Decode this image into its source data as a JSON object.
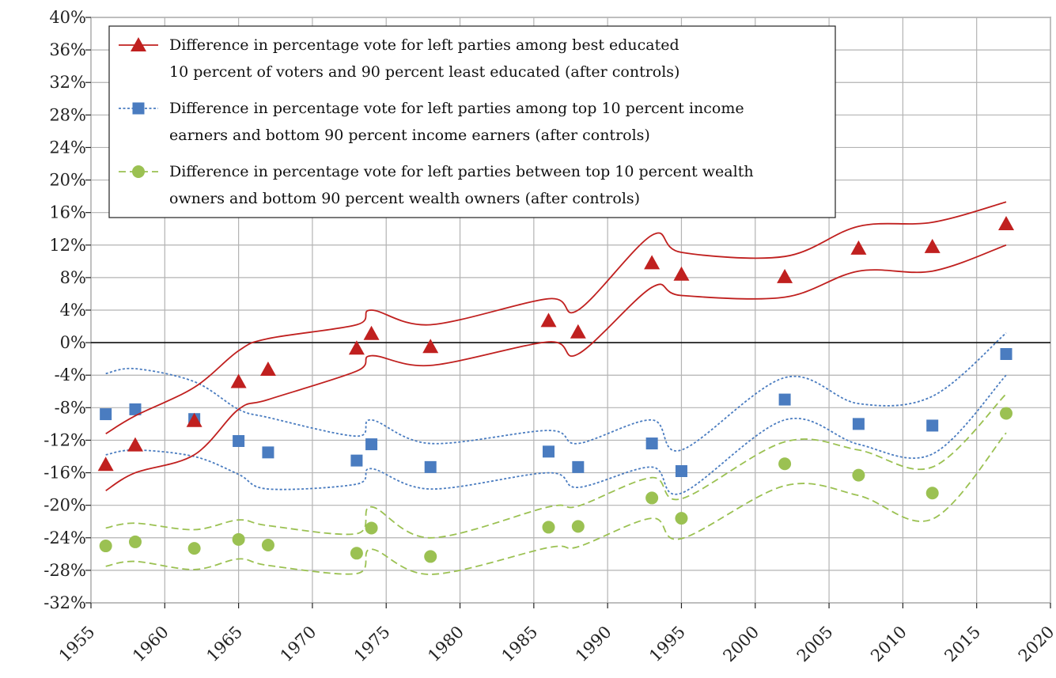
{
  "chart_data": {
    "type": "line",
    "title": "",
    "xlabel": "",
    "ylabel": "",
    "xlim": [
      1955,
      2020
    ],
    "ylim": [
      -32,
      40
    ],
    "x_ticks": [
      "1955",
      "1960",
      "1965",
      "1970",
      "1975",
      "1980",
      "1985",
      "1990",
      "1995",
      "2000",
      "2005",
      "2010",
      "2015",
      "2020"
    ],
    "y_ticks": [
      "40%",
      "36%",
      "32%",
      "28%",
      "24%",
      "20%",
      "16%",
      "12%",
      "8%",
      "4%",
      "0%",
      "-4%",
      "-8%",
      "-12%",
      "-16%",
      "-20%",
      "-24%",
      "-28%",
      "-32%"
    ],
    "grid": true,
    "legend_position": "top-left",
    "series": [
      {
        "name": "Difference in percentage vote for left parties among best educated 10 percent of voters and 90 percent least educated (after controls)",
        "legend_lines": [
          "Difference in percentage vote for left parties among best educated",
          "10 percent of voters and 90 percent least educated (after controls)"
        ],
        "color": "#c0201f",
        "marker": "triangle",
        "line_style": "solid",
        "x": [
          1956,
          1958,
          1962,
          1965,
          1967,
          1973,
          1974,
          1978,
          1986,
          1988,
          1993,
          1995,
          2002,
          2007,
          2012,
          2017
        ],
        "values": [
          -15.0,
          -12.6,
          -9.6,
          -4.8,
          -3.3,
          -0.7,
          1.1,
          -0.5,
          2.7,
          1.3,
          9.8,
          8.4,
          8.1,
          11.6,
          11.8,
          14.6
        ],
        "upper": [
          -11.2,
          -9.0,
          -5.5,
          -1.0,
          0.5,
          2.2,
          4.0,
          2.2,
          5.4,
          4.0,
          13.2,
          11.1,
          10.6,
          14.3,
          14.8,
          17.3
        ],
        "lower": [
          -18.2,
          -16.0,
          -13.8,
          -8.2,
          -7.0,
          -3.5,
          -1.6,
          -2.8,
          0.1,
          -1.4,
          6.8,
          5.8,
          5.6,
          8.8,
          8.8,
          12.0
        ]
      },
      {
        "name": "Difference in percentage vote for left parties among top 10 percent income earners and bottom 90 percent income earners (after controls)",
        "legend_lines": [
          "Difference in percentage vote for left parties among top 10 percent income",
          "earners and bottom 90 percent income earners (after controls)"
        ],
        "color": "#4a7cc0",
        "marker": "square",
        "line_style": "dotted",
        "x": [
          1956,
          1958,
          1962,
          1965,
          1967,
          1973,
          1974,
          1978,
          1986,
          1988,
          1993,
          1995,
          2002,
          2007,
          2012,
          2017
        ],
        "values": [
          -8.8,
          -8.2,
          -9.4,
          -12.1,
          -13.5,
          -14.5,
          -12.5,
          -15.3,
          -13.4,
          -15.3,
          -12.4,
          -15.8,
          -7.0,
          -10.0,
          -10.2,
          -1.4
        ],
        "upper": [
          -3.8,
          -3.2,
          -4.8,
          -8.2,
          -9.2,
          -11.5,
          -9.5,
          -12.4,
          -10.8,
          -12.4,
          -9.5,
          -13.2,
          -4.3,
          -7.5,
          -6.6,
          1.2
        ],
        "lower": [
          -13.8,
          -13.2,
          -14.0,
          -16.2,
          -18.0,
          -17.4,
          -15.5,
          -18.0,
          -16.0,
          -17.8,
          -15.3,
          -18.5,
          -9.5,
          -12.5,
          -13.7,
          -4.0
        ]
      },
      {
        "name": "Difference in percentage vote for left parties between top 10 percent wealth owners and bottom 90 percent wealth owners (after controls)",
        "legend_lines": [
          "Difference in percentage vote for left parties between top 10 percent wealth",
          "owners and bottom 90 percent wealth owners (after controls)"
        ],
        "color": "#9bc152",
        "marker": "circle",
        "line_style": "dashed",
        "x": [
          1956,
          1958,
          1962,
          1965,
          1967,
          1973,
          1974,
          1978,
          1986,
          1988,
          1993,
          1995,
          2002,
          2007,
          2012,
          2017
        ],
        "values": [
          -25.0,
          -24.5,
          -25.3,
          -24.2,
          -24.9,
          -25.9,
          -22.8,
          -26.3,
          -22.7,
          -22.6,
          -19.1,
          -21.6,
          -14.9,
          -16.3,
          -18.5,
          -8.7
        ],
        "upper": [
          -22.8,
          -22.2,
          -23.0,
          -21.8,
          -22.5,
          -23.5,
          -20.2,
          -24.0,
          -20.2,
          -20.1,
          -16.6,
          -19.2,
          -12.2,
          -13.2,
          -15.3,
          -6.3
        ],
        "lower": [
          -27.5,
          -26.9,
          -27.9,
          -26.6,
          -27.4,
          -28.4,
          -25.4,
          -28.5,
          -25.2,
          -25.1,
          -21.6,
          -24.1,
          -17.6,
          -18.8,
          -21.7,
          -11.1
        ]
      }
    ]
  }
}
